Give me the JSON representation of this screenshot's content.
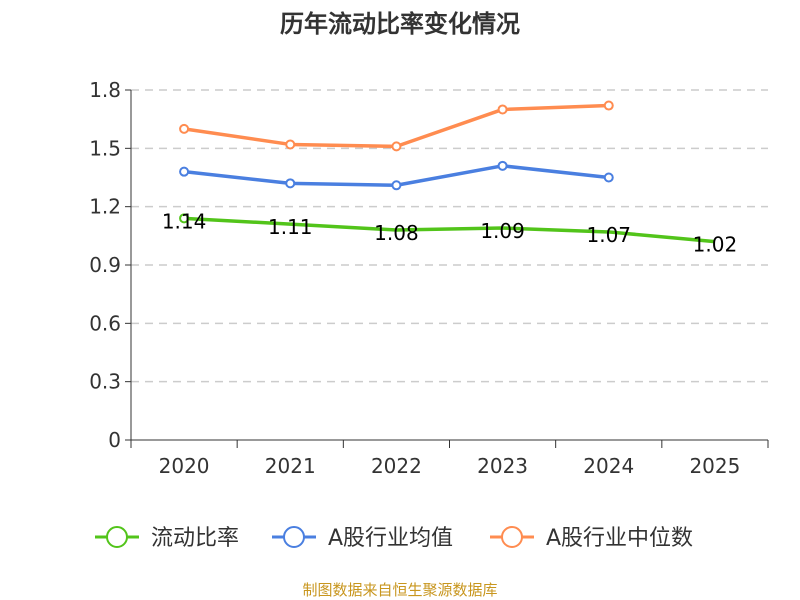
{
  "chart_data": {
    "type": "line",
    "title": "历年流动比率变化情况",
    "categories": [
      "2020",
      "2021",
      "2022",
      "2023",
      "2024",
      "2025"
    ],
    "ylim": [
      0,
      1.8
    ],
    "yticks": [
      "0",
      "0.3",
      "0.6",
      "0.9",
      "1.2",
      "1.5",
      "1.8"
    ],
    "grid": true,
    "legend_position": "bottom",
    "series": [
      {
        "name": "流动比率",
        "color": "#52c41a",
        "values": [
          1.14,
          1.11,
          1.08,
          1.09,
          1.07,
          1.02
        ],
        "labels": [
          "1.14",
          "1.11",
          "1.08",
          "1.09",
          "1.07",
          "1.02"
        ]
      },
      {
        "name": "A股行业均值",
        "color": "#4a7fe0",
        "values": [
          1.38,
          1.32,
          1.31,
          1.41,
          1.35,
          null
        ]
      },
      {
        "name": "A股行业中位数",
        "color": "#ff8c50",
        "values": [
          1.6,
          1.52,
          1.51,
          1.7,
          1.72,
          null
        ]
      }
    ]
  },
  "source": "制图数据来自恒生聚源数据库"
}
